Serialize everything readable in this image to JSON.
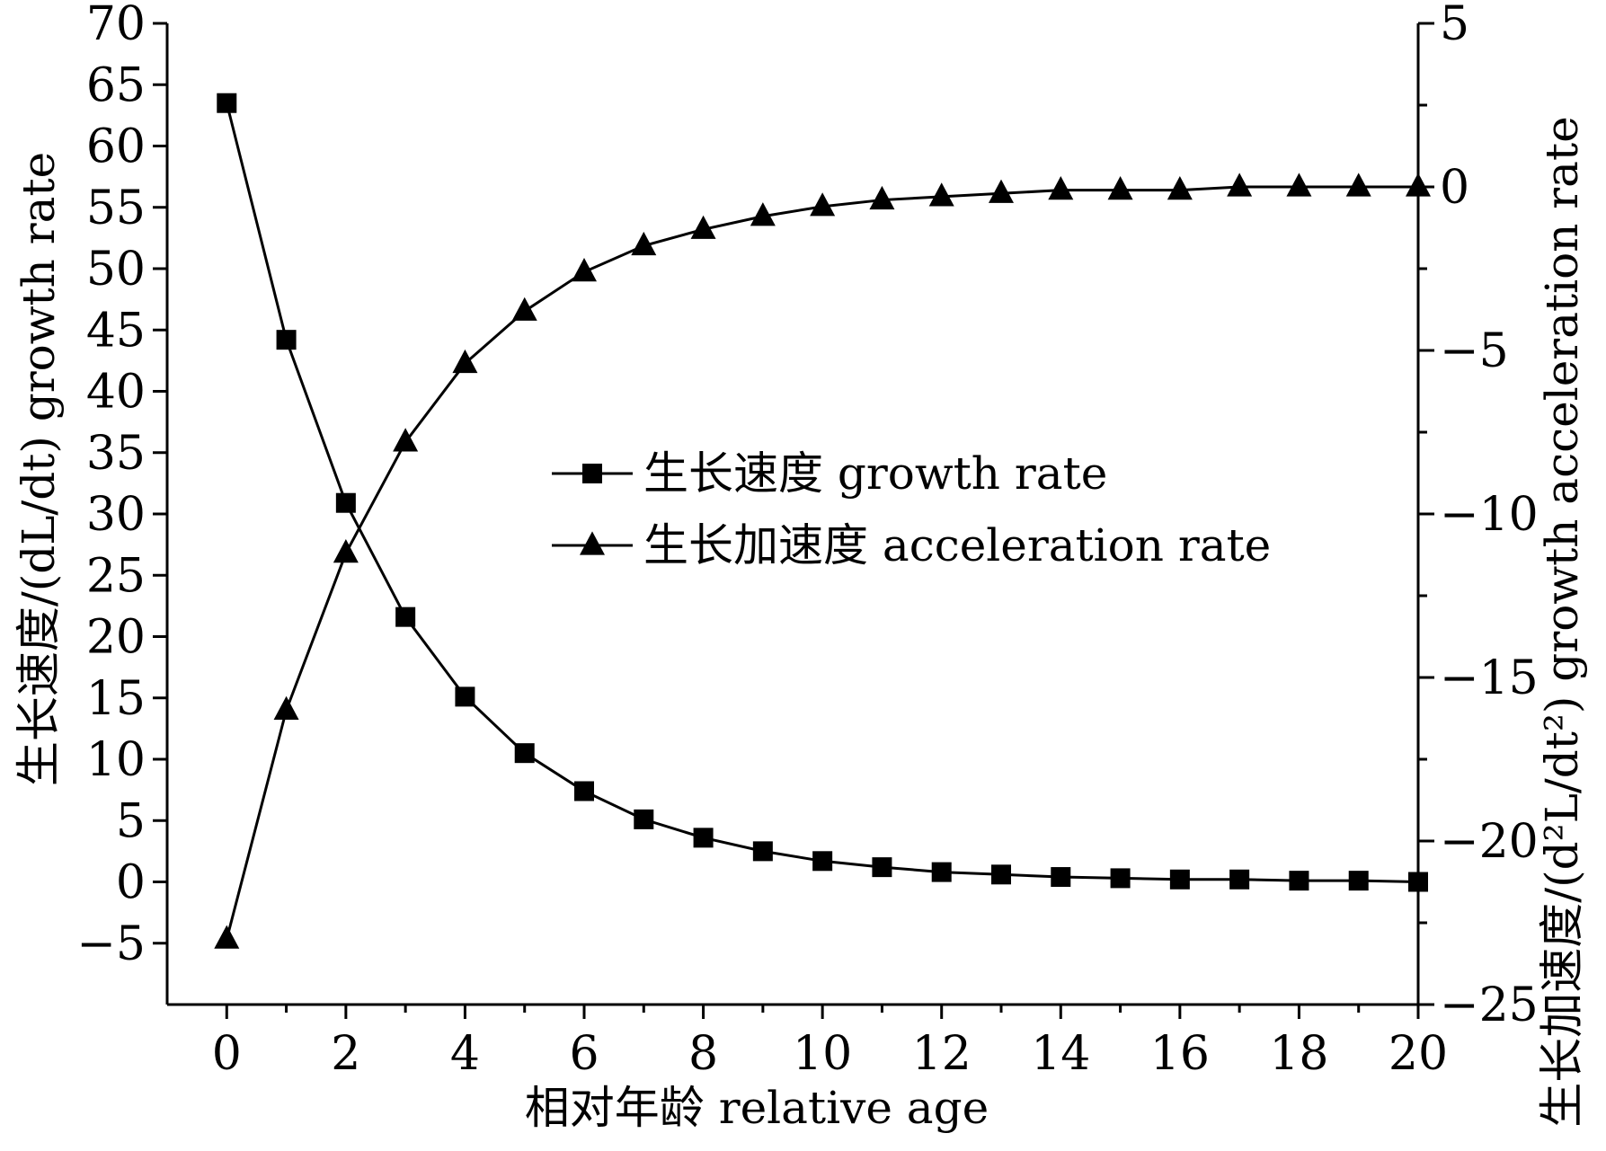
{
  "chart_data": {
    "type": "line",
    "x": [
      0,
      1,
      2,
      3,
      4,
      5,
      6,
      7,
      8,
      9,
      10,
      11,
      12,
      13,
      14,
      15,
      16,
      17,
      18,
      19,
      20
    ],
    "series": [
      {
        "name": "生长速度 growth rate",
        "axis": "left",
        "marker": "square",
        "values": [
          63.5,
          44.2,
          30.9,
          21.6,
          15.1,
          10.5,
          7.4,
          5.1,
          3.6,
          2.5,
          1.7,
          1.2,
          0.8,
          0.6,
          0.4,
          0.3,
          0.2,
          0.2,
          0.1,
          0.1,
          0.0
        ]
      },
      {
        "name": "生长加速度 acceleration rate",
        "axis": "right",
        "marker": "triangle",
        "values": [
          -23.0,
          -16.0,
          -11.2,
          -7.8,
          -5.4,
          -3.8,
          -2.6,
          -1.8,
          -1.3,
          -0.9,
          -0.6,
          -0.4,
          -0.3,
          -0.2,
          -0.1,
          -0.1,
          -0.1,
          0.0,
          0.0,
          0.0,
          0.0
        ]
      }
    ],
    "xlabel": "相对年龄 relative age",
    "ylabel_left": "生长速度/(dL/dt) growth rate",
    "ylabel_right": "生长加速度/(d²L/dt²) growth acceleration rate",
    "xlim": [
      -1,
      20
    ],
    "ylim_left": [
      -10,
      70
    ],
    "ylim_right": [
      -25,
      5
    ],
    "x_ticks": [
      0,
      2,
      4,
      6,
      8,
      10,
      12,
      14,
      16,
      18,
      20
    ],
    "y_ticks_left": [
      -5,
      0,
      5,
      10,
      15,
      20,
      25,
      30,
      35,
      40,
      45,
      50,
      55,
      60,
      65,
      70
    ],
    "y_ticks_right": [
      -25,
      -20,
      -15,
      -10,
      -5,
      0,
      5
    ],
    "legend_position": "center",
    "grid": false
  }
}
